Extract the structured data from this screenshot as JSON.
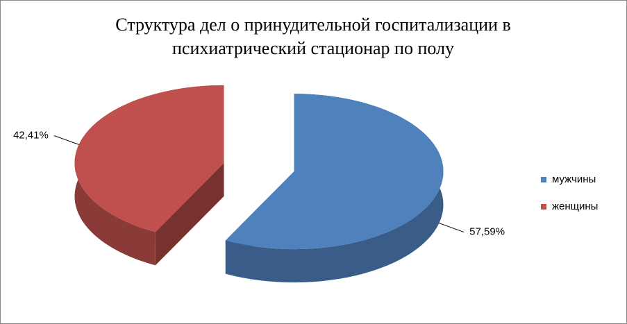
{
  "chart_data": {
    "type": "pie3d",
    "title": "Структура дел о принудительной госпитализации в психиатрический стационар по полу",
    "categories": [
      "мужчины",
      "женщины"
    ],
    "values": [
      57.59,
      42.41
    ],
    "value_labels": [
      "57,59%",
      "42,41%"
    ],
    "colors": [
      "#4f81bd",
      "#c0504d"
    ],
    "legend": "right"
  }
}
